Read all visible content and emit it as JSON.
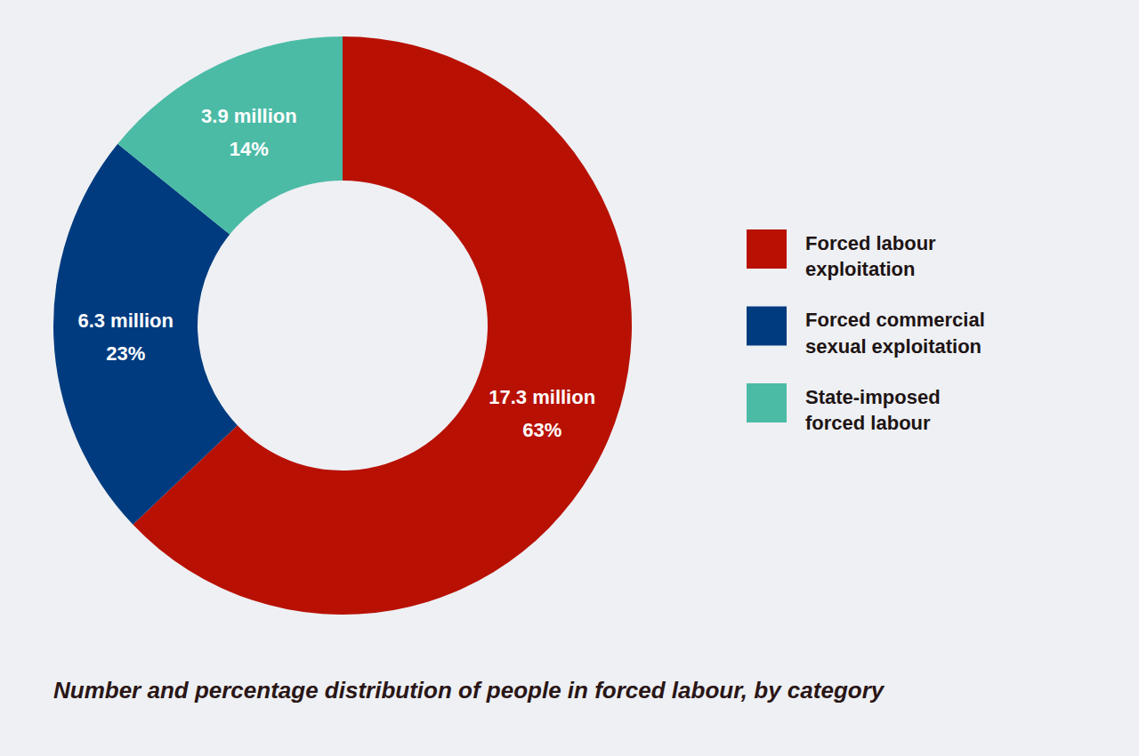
{
  "chart_data": {
    "type": "donut",
    "title": "Number and percentage distribution of people in forced labour, by category",
    "categories": [
      "Forced labour exploitation",
      "Forced commercial sexual exploitation",
      "State-imposed forced labour"
    ],
    "values": [
      17.3,
      6.3,
      3.9
    ],
    "value_labels": [
      "17.3 million",
      "6.3 million",
      "3.9 million"
    ],
    "percentages": [
      63,
      23,
      14
    ],
    "percentage_labels": [
      "63%",
      "23%",
      "14%"
    ],
    "colors": [
      "#b81104",
      "#003b7f",
      "#4bbba6"
    ],
    "data_labels": true,
    "legend": "right"
  }
}
